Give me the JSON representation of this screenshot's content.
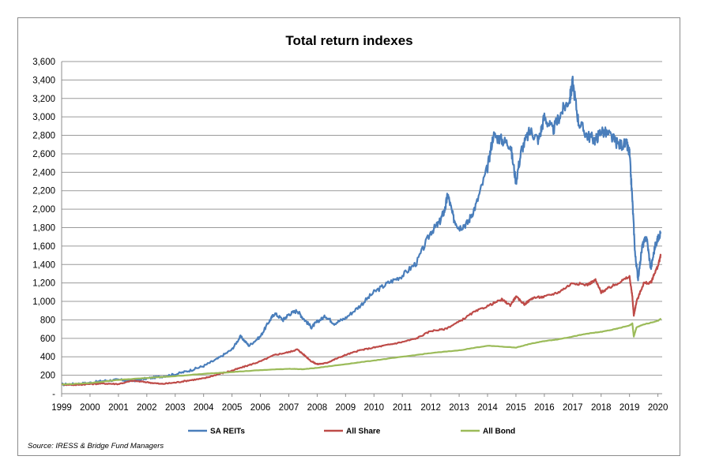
{
  "chart_data": {
    "type": "line",
    "title": "Total return indexes",
    "source": "Source: IRESS & Bridge Fund Managers",
    "x_tick_labels": [
      "1999",
      "2000",
      "2001",
      "2002",
      "2003",
      "2004",
      "2005",
      "2006",
      "2007",
      "2008",
      "2009",
      "2010",
      "2011",
      "2012",
      "2013",
      "2014",
      "2015",
      "2016",
      "2017",
      "2018",
      "2019",
      "2020"
    ],
    "y_tick_labels": [
      "-",
      "200",
      "400",
      "600",
      "800",
      "1,000",
      "1,200",
      "1,400",
      "1,600",
      "1,800",
      "2,000",
      "2,200",
      "2,400",
      "2,600",
      "2,800",
      "3,000",
      "3,200",
      "3,400",
      "3,600"
    ],
    "xlim": [
      1999,
      2020.15
    ],
    "ylim": [
      0,
      3600
    ],
    "grid": true,
    "legend_position": "bottom",
    "series": [
      {
        "name": "SA REITs",
        "color": "#4a7ebb",
        "points": [
          [
            1999,
            100
          ],
          [
            1999.5,
            105
          ],
          [
            2000,
            118
          ],
          [
            2000.5,
            140
          ],
          [
            2001,
            150
          ],
          [
            2001.5,
            140
          ],
          [
            2002,
            165
          ],
          [
            2002.5,
            185
          ],
          [
            2003,
            210
          ],
          [
            2003.5,
            250
          ],
          [
            2004,
            300
          ],
          [
            2004.5,
            380
          ],
          [
            2005,
            480
          ],
          [
            2005.3,
            620
          ],
          [
            2005.6,
            520
          ],
          [
            2006,
            620
          ],
          [
            2006.3,
            780
          ],
          [
            2006.5,
            870
          ],
          [
            2006.8,
            800
          ],
          [
            2007,
            860
          ],
          [
            2007.3,
            900
          ],
          [
            2007.5,
            820
          ],
          [
            2007.8,
            720
          ],
          [
            2008,
            780
          ],
          [
            2008.3,
            840
          ],
          [
            2008.6,
            760
          ],
          [
            2009,
            820
          ],
          [
            2009.5,
            950
          ],
          [
            2010,
            1100
          ],
          [
            2010.5,
            1200
          ],
          [
            2011,
            1280
          ],
          [
            2011.5,
            1420
          ],
          [
            2012,
            1750
          ],
          [
            2012.3,
            1850
          ],
          [
            2012.5,
            2000
          ],
          [
            2012.6,
            2160
          ],
          [
            2012.8,
            1900
          ],
          [
            2013,
            1800
          ],
          [
            2013.3,
            1850
          ],
          [
            2013.6,
            2050
          ],
          [
            2014,
            2450
          ],
          [
            2014.2,
            2800
          ],
          [
            2014.5,
            2750
          ],
          [
            2014.8,
            2700
          ],
          [
            2015,
            2300
          ],
          [
            2015.2,
            2650
          ],
          [
            2015.5,
            2850
          ],
          [
            2015.8,
            2750
          ],
          [
            2016,
            3000
          ],
          [
            2016.3,
            2850
          ],
          [
            2016.6,
            3050
          ],
          [
            2016.9,
            3200
          ],
          [
            2017,
            3380
          ],
          [
            2017.2,
            2950
          ],
          [
            2017.5,
            2800
          ],
          [
            2017.8,
            2750
          ],
          [
            2018,
            2850
          ],
          [
            2018.3,
            2800
          ],
          [
            2018.6,
            2700
          ],
          [
            2018.9,
            2700
          ],
          [
            2019,
            2600
          ],
          [
            2019.1,
            2100
          ],
          [
            2019.2,
            1500
          ],
          [
            2019.3,
            1250
          ],
          [
            2019.45,
            1600
          ],
          [
            2019.6,
            1700
          ],
          [
            2019.75,
            1350
          ],
          [
            2019.9,
            1600
          ],
          [
            2020,
            1680
          ],
          [
            2020.1,
            1750
          ]
        ]
      },
      {
        "name": "All Share",
        "color": "#be4b48",
        "points": [
          [
            1999,
            100
          ],
          [
            1999.5,
            95
          ],
          [
            2000,
            105
          ],
          [
            2000.5,
            110
          ],
          [
            2001,
            105
          ],
          [
            2001.5,
            140
          ],
          [
            2002,
            125
          ],
          [
            2002.5,
            105
          ],
          [
            2003,
            120
          ],
          [
            2003.5,
            145
          ],
          [
            2004,
            165
          ],
          [
            2004.5,
            210
          ],
          [
            2005,
            250
          ],
          [
            2005.5,
            300
          ],
          [
            2006,
            350
          ],
          [
            2006.5,
            420
          ],
          [
            2007,
            450
          ],
          [
            2007.3,
            480
          ],
          [
            2007.5,
            430
          ],
          [
            2007.8,
            350
          ],
          [
            2008,
            320
          ],
          [
            2008.3,
            330
          ],
          [
            2008.6,
            370
          ],
          [
            2009,
            420
          ],
          [
            2009.5,
            470
          ],
          [
            2010,
            500
          ],
          [
            2010.5,
            530
          ],
          [
            2011,
            560
          ],
          [
            2011.5,
            600
          ],
          [
            2012,
            680
          ],
          [
            2012.5,
            700
          ],
          [
            2013,
            780
          ],
          [
            2013.5,
            880
          ],
          [
            2014,
            950
          ],
          [
            2014.5,
            1020
          ],
          [
            2014.8,
            960
          ],
          [
            2015,
            1050
          ],
          [
            2015.3,
            970
          ],
          [
            2015.6,
            1040
          ],
          [
            2016,
            1050
          ],
          [
            2016.5,
            1100
          ],
          [
            2017,
            1200
          ],
          [
            2017.5,
            1180
          ],
          [
            2017.8,
            1230
          ],
          [
            2018,
            1100
          ],
          [
            2018.3,
            1150
          ],
          [
            2018.6,
            1200
          ],
          [
            2019,
            1270
          ],
          [
            2019.1,
            1050
          ],
          [
            2019.15,
            850
          ],
          [
            2019.25,
            1000
          ],
          [
            2019.5,
            1200
          ],
          [
            2019.75,
            1200
          ],
          [
            2019.9,
            1320
          ],
          [
            2020,
            1380
          ],
          [
            2020.1,
            1500
          ]
        ]
      },
      {
        "name": "All Bond",
        "color": "#9bbb59",
        "points": [
          [
            1999,
            100
          ],
          [
            2000,
            115
          ],
          [
            2001,
            150
          ],
          [
            2002,
            170
          ],
          [
            2003,
            190
          ],
          [
            2004,
            215
          ],
          [
            2005,
            235
          ],
          [
            2006,
            255
          ],
          [
            2007,
            270
          ],
          [
            2007.5,
            265
          ],
          [
            2008,
            280
          ],
          [
            2009,
            320
          ],
          [
            2010,
            360
          ],
          [
            2011,
            400
          ],
          [
            2012,
            440
          ],
          [
            2013,
            470
          ],
          [
            2014,
            520
          ],
          [
            2015,
            500
          ],
          [
            2015.5,
            540
          ],
          [
            2016,
            570
          ],
          [
            2016.5,
            590
          ],
          [
            2017,
            620
          ],
          [
            2017.5,
            650
          ],
          [
            2018,
            670
          ],
          [
            2018.5,
            700
          ],
          [
            2019,
            740
          ],
          [
            2019.1,
            760
          ],
          [
            2019.15,
            620
          ],
          [
            2019.25,
            720
          ],
          [
            2019.5,
            750
          ],
          [
            2020,
            790
          ],
          [
            2020.1,
            810
          ]
        ]
      }
    ]
  }
}
